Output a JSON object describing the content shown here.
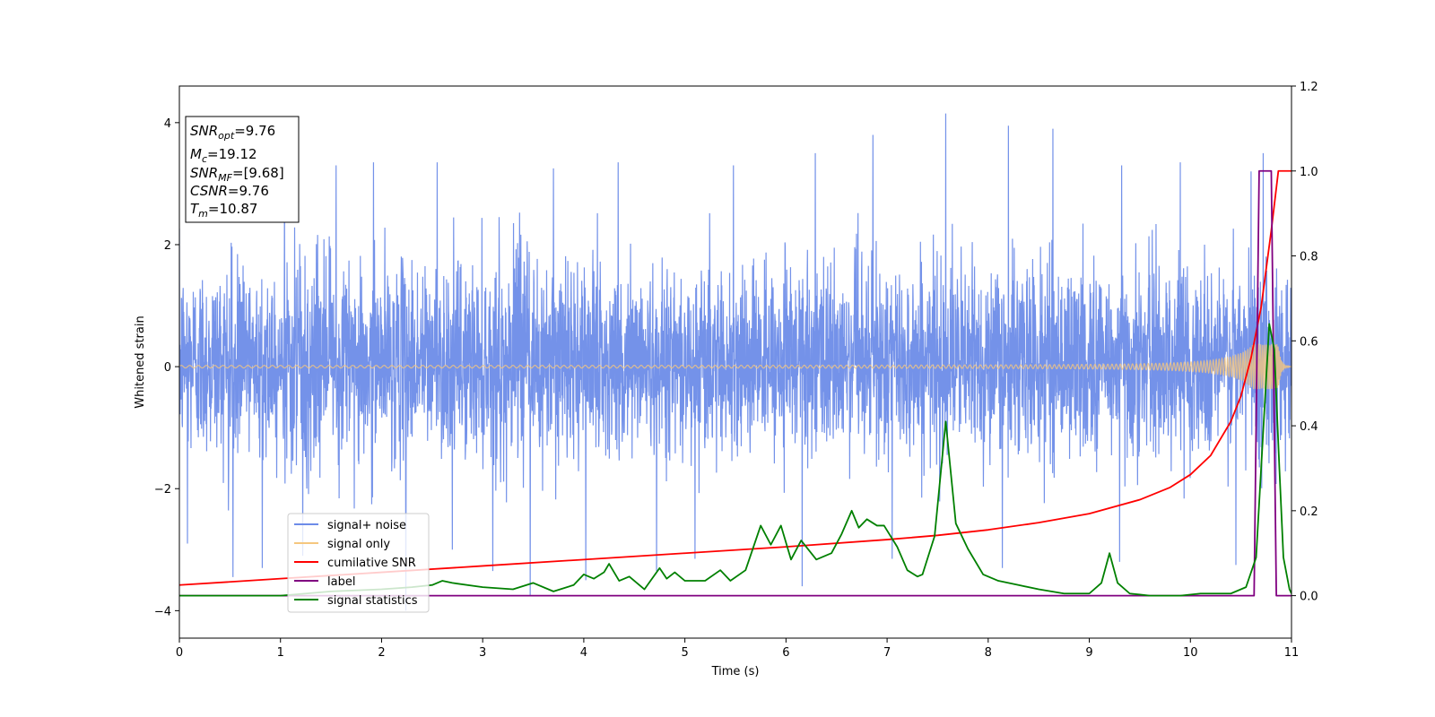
{
  "chart_data": {
    "type": "line",
    "title": "",
    "xlabel": "Time (s)",
    "ylabel": "Whitened strain",
    "xlim": [
      0,
      11
    ],
    "ylim": [
      -4.45,
      4.6
    ],
    "y2lim": [
      -0.1,
      1.2
    ],
    "xticks": [
      0,
      1,
      2,
      3,
      4,
      5,
      6,
      7,
      8,
      9,
      10,
      11
    ],
    "yticks": [
      -4,
      -2,
      0,
      2,
      4
    ],
    "y2ticks": [
      0.0,
      0.2,
      0.4,
      0.6,
      0.8,
      1.0,
      1.2
    ],
    "y2tick_labels": [
      "0.0",
      "0.2",
      "0.4",
      "0.6",
      "0.8",
      "1.0",
      "1.2"
    ],
    "grid": false,
    "legend_position": "lower-left",
    "colors": {
      "signal_noise": "#6d8ce8",
      "signal_only": "#f5c77e",
      "cumulative_snr": "#ff0000",
      "label": "#800080",
      "signal_statistics": "#008000"
    },
    "series": [
      {
        "name": "signal+ noise",
        "axis": "left",
        "description_values": "dense noise, typical range -2 to 2.5, peaks up to 4.15 near t=7.6 and min -4.0 near t=2.25",
        "envelope_low": -2.0,
        "envelope_high": 2.3,
        "spikes": [
          [
            0.08,
            -2.9
          ],
          [
            0.53,
            -3.45
          ],
          [
            0.82,
            -3.3
          ],
          [
            1.22,
            -3.1
          ],
          [
            1.92,
            -3.4
          ],
          [
            2.24,
            -4.0
          ],
          [
            2.7,
            -3.0
          ],
          [
            3.1,
            -3.35
          ],
          [
            3.47,
            -3.75
          ],
          [
            4.02,
            -3.5
          ],
          [
            4.72,
            -3.35
          ],
          [
            5.1,
            -3.15
          ],
          [
            6.16,
            -3.6
          ],
          [
            7.05,
            -3.15
          ],
          [
            8.14,
            -3.3
          ],
          [
            9.3,
            -3.2
          ],
          [
            10.45,
            -3.25
          ],
          [
            1.04,
            3.1
          ],
          [
            1.55,
            3.3
          ],
          [
            1.92,
            3.35
          ],
          [
            2.55,
            3.35
          ],
          [
            3.7,
            3.25
          ],
          [
            4.34,
            3.35
          ],
          [
            5.48,
            3.3
          ],
          [
            6.29,
            3.5
          ],
          [
            6.86,
            3.8
          ],
          [
            7.58,
            4.15
          ],
          [
            8.2,
            3.95
          ],
          [
            8.64,
            3.9
          ],
          [
            9.32,
            3.3
          ],
          [
            9.9,
            3.35
          ],
          [
            10.6,
            3.2
          ],
          [
            10.72,
            3.5
          ]
        ]
      },
      {
        "name": "signal only",
        "axis": "left",
        "chirp_start_amplitude": 0.02,
        "chirp_end_amplitude": 0.6,
        "merger_time": 10.87
      },
      {
        "name": "cumilative SNR",
        "axis": "right",
        "x": [
          0,
          1,
          2,
          3,
          4,
          5,
          6,
          7,
          7.5,
          8,
          8.5,
          9,
          9.5,
          9.8,
          10,
          10.2,
          10.4,
          10.5,
          10.6,
          10.7,
          10.8,
          10.87,
          10.9,
          11
        ],
        "y": [
          0.025,
          0.04,
          0.055,
          0.07,
          0.085,
          0.1,
          0.115,
          0.132,
          0.142,
          0.155,
          0.172,
          0.193,
          0.226,
          0.255,
          0.285,
          0.33,
          0.41,
          0.47,
          0.56,
          0.68,
          0.86,
          1.0,
          1.0,
          1.0
        ]
      },
      {
        "name": "label",
        "axis": "right",
        "x": [
          0,
          10.63,
          10.68,
          10.8,
          10.85,
          11
        ],
        "y": [
          0,
          0,
          1,
          1,
          0,
          0
        ]
      },
      {
        "name": "signal statistics",
        "axis": "right",
        "x": [
          0,
          0.5,
          1,
          1.5,
          2,
          2.3,
          2.5,
          2.6,
          2.7,
          3,
          3.3,
          3.5,
          3.7,
          3.9,
          4.0,
          4.1,
          4.2,
          4.25,
          4.35,
          4.45,
          4.6,
          4.75,
          4.82,
          4.9,
          5.0,
          5.2,
          5.35,
          5.45,
          5.6,
          5.75,
          5.85,
          5.95,
          6.05,
          6.15,
          6.3,
          6.45,
          6.55,
          6.65,
          6.72,
          6.8,
          6.9,
          6.97,
          7.1,
          7.2,
          7.3,
          7.35,
          7.47,
          7.58,
          7.68,
          7.8,
          7.95,
          8.1,
          8.3,
          8.5,
          8.75,
          9.0,
          9.12,
          9.2,
          9.28,
          9.4,
          9.6,
          9.9,
          10.1,
          10.4,
          10.55,
          10.65,
          10.78,
          10.83,
          10.88,
          10.92,
          10.98,
          11
        ],
        "y": [
          0.0,
          0.0,
          0.0,
          0.01,
          0.015,
          0.02,
          0.025,
          0.035,
          0.03,
          0.02,
          0.015,
          0.03,
          0.01,
          0.025,
          0.05,
          0.04,
          0.055,
          0.075,
          0.035,
          0.045,
          0.015,
          0.065,
          0.04,
          0.055,
          0.035,
          0.035,
          0.06,
          0.035,
          0.06,
          0.165,
          0.12,
          0.165,
          0.085,
          0.13,
          0.085,
          0.1,
          0.145,
          0.2,
          0.16,
          0.18,
          0.165,
          0.165,
          0.115,
          0.06,
          0.045,
          0.05,
          0.14,
          0.41,
          0.17,
          0.11,
          0.05,
          0.035,
          0.025,
          0.015,
          0.005,
          0.005,
          0.03,
          0.1,
          0.03,
          0.005,
          0.0,
          0.0,
          0.005,
          0.005,
          0.02,
          0.09,
          0.64,
          0.58,
          0.3,
          0.09,
          0.015,
          0.005
        ]
      }
    ],
    "annotation": {
      "snr_opt_label": "SNR",
      "snr_opt_sub": "opt",
      "snr_opt_value": "=9.76",
      "mc_label": "M",
      "mc_sub": "c",
      "mc_value": "=19.12",
      "snr_mf_label": "SNR",
      "snr_mf_sub": "MF",
      "snr_mf_value": "=[9.68]",
      "csnr_label": "CSNR",
      "csnr_value": "=9.76",
      "tm_label": "T",
      "tm_sub": "m",
      "tm_value": "=10.87"
    }
  }
}
